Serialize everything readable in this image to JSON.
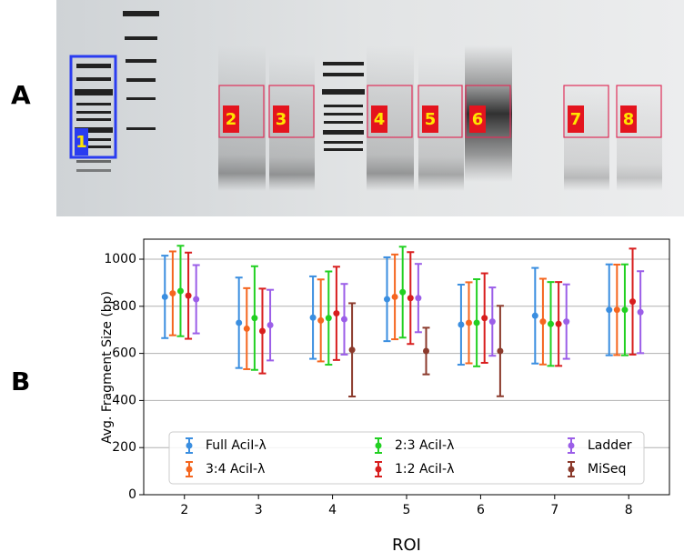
{
  "panels": [
    "A",
    "B"
  ],
  "gel": {
    "roi_labels": [
      "1",
      "2",
      "3",
      "4",
      "5",
      "6",
      "7",
      "8"
    ]
  },
  "chart_data": {
    "type": "errorbar",
    "x_label": "ROI",
    "y_label": "Avg. Fragment Size (bp)",
    "categories": [
      "2",
      "3",
      "4",
      "5",
      "6",
      "7",
      "8"
    ],
    "series": [
      {
        "name": "Full AciI-λ",
        "color": "#3a8ee0",
        "values": [
          840,
          730,
          752,
          830,
          722,
          760,
          785
        ],
        "errors": [
          175,
          192,
          175,
          178,
          170,
          203,
          193
        ]
      },
      {
        "name": "3:4 AciI-λ",
        "color": "#f5661f",
        "values": [
          855,
          705,
          740,
          840,
          730,
          735,
          785
        ],
        "errors": [
          178,
          172,
          174,
          180,
          172,
          182,
          192
        ]
      },
      {
        "name": "2:3 AciI-λ",
        "color": "#22d022",
        "values": [
          865,
          750,
          750,
          860,
          730,
          725,
          785
        ],
        "errors": [
          192,
          220,
          198,
          193,
          185,
          178,
          193
        ]
      },
      {
        "name": "1:2 AciI-λ",
        "color": "#d81e1e",
        "values": [
          845,
          695,
          770,
          835,
          750,
          725,
          820
        ],
        "errors": [
          183,
          180,
          198,
          195,
          190,
          178,
          225
        ]
      },
      {
        "name": "Ladder",
        "color": "#9b5ee8",
        "values": [
          830,
          720,
          745,
          835,
          735,
          735,
          775
        ],
        "errors": [
          145,
          150,
          150,
          145,
          145,
          158,
          174
        ]
      },
      {
        "name": "MiSeq",
        "color": "#8b3a2c",
        "values": [
          null,
          null,
          615,
          610,
          610,
          null,
          null
        ],
        "errors": [
          null,
          null,
          198,
          99,
          192,
          null,
          null
        ]
      }
    ],
    "ylim": [
      0,
      1085
    ],
    "yticks": [
      0,
      200,
      400,
      600,
      800,
      1000
    ],
    "grid": true,
    "legend": "lower center"
  }
}
